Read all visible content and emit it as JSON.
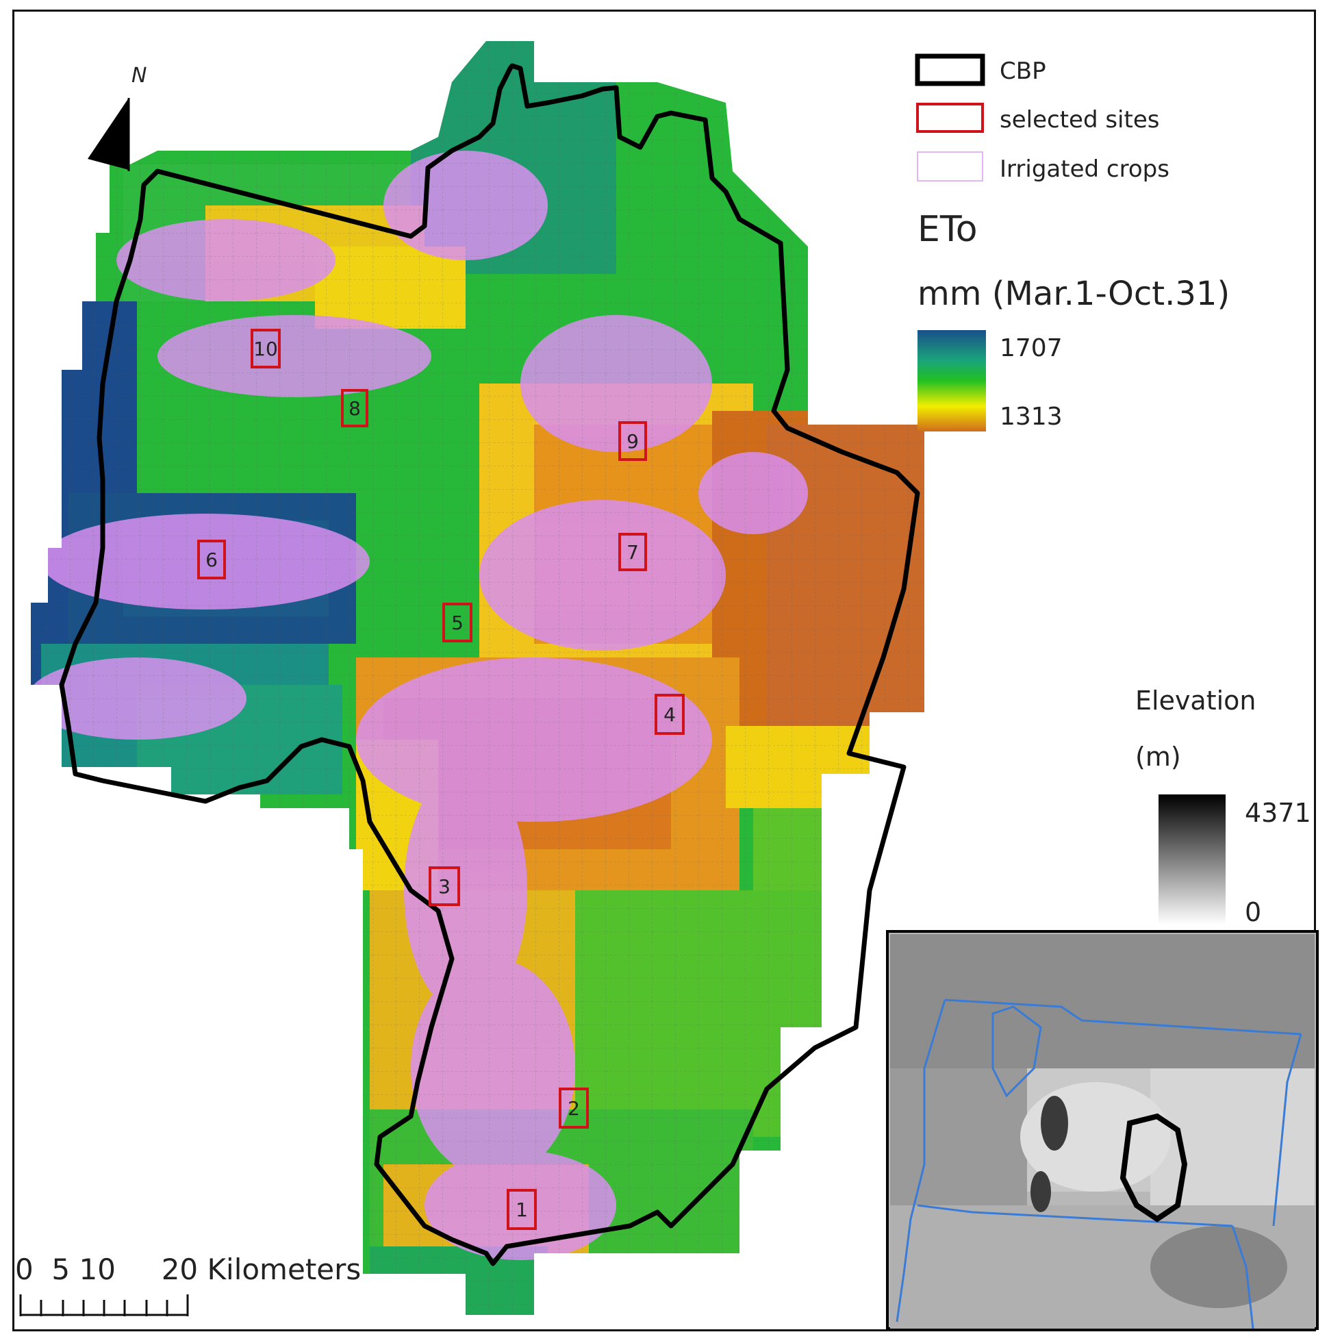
{
  "north_arrow": {
    "label": "N"
  },
  "legend": {
    "items": [
      {
        "label": "CBP",
        "icon": "thick-black-outline-swatch",
        "color": "#000000"
      },
      {
        "label": "selected sites",
        "icon": "red-outline-swatch",
        "color": "#d0121b"
      },
      {
        "label": "Irrigated  crops",
        "icon": "violet-outline-swatch",
        "color": "#d98ff0"
      }
    ],
    "eto_title": "ETo",
    "eto_units": "mm (Mar.1-Oct.31)",
    "eto_max": "1707",
    "eto_min": "1313",
    "eto_colors": [
      "#1a4f8c",
      "#1aa47a",
      "#22c022",
      "#f2ee00",
      "#cf6c1a"
    ]
  },
  "elevation_legend": {
    "title": "Elevation",
    "units": "(m)",
    "max": "4371",
    "min": "0"
  },
  "sites": [
    "1",
    "2",
    "3",
    "4",
    "5",
    "6",
    "7",
    "8",
    "9",
    "10"
  ],
  "scale_bar": {
    "label": "0  5 10     20 Kilometers"
  },
  "colors": {
    "boundary": "#000000",
    "site_box": "#d0121b",
    "irrigated": "#d98ff0",
    "state_lines": "#3a7bd5"
  }
}
